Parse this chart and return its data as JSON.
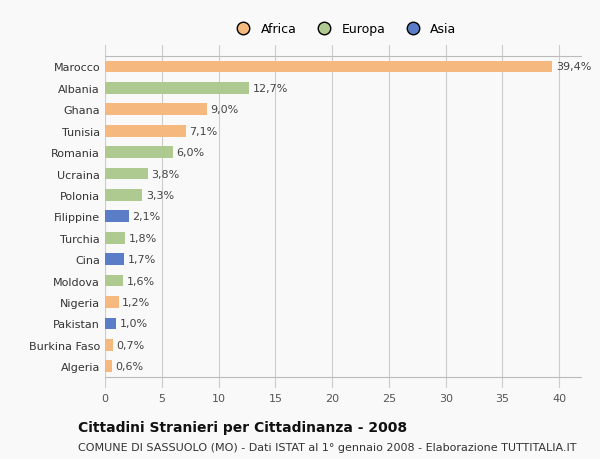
{
  "countries": [
    "Algeria",
    "Burkina Faso",
    "Pakistan",
    "Nigeria",
    "Moldova",
    "Cina",
    "Turchia",
    "Filippine",
    "Polonia",
    "Ucraina",
    "Romania",
    "Tunisia",
    "Ghana",
    "Albania",
    "Marocco"
  ],
  "values": [
    0.6,
    0.7,
    1.0,
    1.2,
    1.6,
    1.7,
    1.8,
    2.1,
    3.3,
    3.8,
    6.0,
    7.1,
    9.0,
    12.7,
    39.4
  ],
  "labels": [
    "0,6%",
    "0,7%",
    "1,0%",
    "1,2%",
    "1,6%",
    "1,7%",
    "1,8%",
    "2,1%",
    "3,3%",
    "3,8%",
    "6,0%",
    "7,1%",
    "9,0%",
    "12,7%",
    "39,4%"
  ],
  "continents": [
    "Africa",
    "Africa",
    "Asia",
    "Africa",
    "Europa",
    "Asia",
    "Europa",
    "Asia",
    "Europa",
    "Europa",
    "Europa",
    "Africa",
    "Africa",
    "Europa",
    "Africa"
  ],
  "colors": {
    "Africa": "#F5B97F",
    "Europa": "#AECA91",
    "Asia": "#5B7DC8"
  },
  "legend_labels": [
    "Africa",
    "Europa",
    "Asia"
  ],
  "legend_colors": [
    "#F5B97F",
    "#AECA91",
    "#5B7DC8"
  ],
  "xlim": [
    0,
    42
  ],
  "xticks": [
    0,
    5,
    10,
    15,
    20,
    25,
    30,
    35,
    40
  ],
  "title": "Cittadini Stranieri per Cittadinanza - 2008",
  "subtitle": "COMUNE DI SASSUOLO (MO) - Dati ISTAT al 1° gennaio 2008 - Elaborazione TUTTITALIA.IT",
  "background_color": "#f9f9f9",
  "plot_bg_color": "#f9f9f9",
  "bar_height": 0.55,
  "grid_color": "#dddddd",
  "title_fontsize": 10,
  "subtitle_fontsize": 8,
  "label_fontsize": 8,
  "tick_fontsize": 8,
  "legend_fontsize": 9
}
